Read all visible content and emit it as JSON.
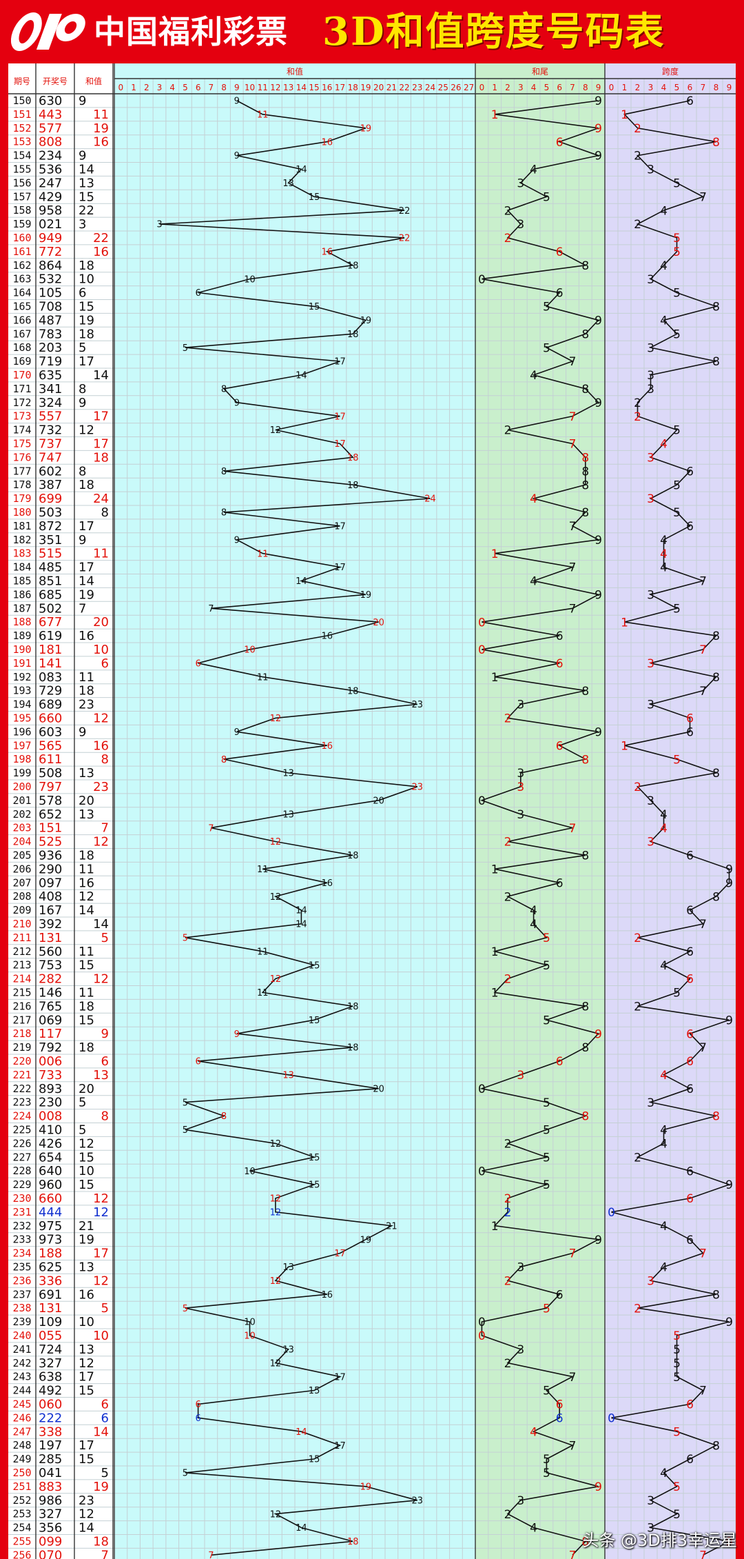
{
  "header": {
    "logo_text": "中国福利彩票",
    "title": "3D和值跨度号码表"
  },
  "columns": {
    "period": "期号",
    "draw": "开奖号",
    "sum": "和值",
    "sum_chart": "和值",
    "tail_chart": "和尾",
    "span_chart": "跨度"
  },
  "watermark": "头条 @3D排3幸运星",
  "colors": {
    "sheet_bg": "#ffffff",
    "sum_bg": "#c9fafa",
    "tail_bg": "#c9efcc",
    "span_bg": "#dcd9f8",
    "grid": "#c4d0d4",
    "red": "#e3120b",
    "blue": "#1030d0",
    "black": "#111111",
    "brand": "#e4000f"
  },
  "chart_data": {
    "type": "table",
    "title": "3D和值跨度号码表",
    "sum_axis": [
      "0",
      "1",
      "2",
      "3",
      "4",
      "5",
      "6",
      "7",
      "8",
      "9",
      "10",
      "11",
      "12",
      "13",
      "14",
      "15",
      "16",
      "17",
      "18",
      "19",
      "20",
      "21",
      "22",
      "23",
      "24",
      "25",
      "26",
      "27"
    ],
    "tail_axis": [
      "0",
      "1",
      "2",
      "3",
      "4",
      "5",
      "6",
      "7",
      "8",
      "9"
    ],
    "span_axis": [
      "0",
      "1",
      "2",
      "3",
      "4",
      "5",
      "6",
      "7",
      "8",
      "9"
    ],
    "rows": [
      {
        "period": "150",
        "draw": "630",
        "sum": "9",
        "tail": "9",
        "span": "6",
        "color": "black"
      },
      {
        "period": "151",
        "draw": "443",
        "sum": "11",
        "tail": "1",
        "span": "1",
        "color": "red"
      },
      {
        "period": "152",
        "draw": "577",
        "sum": "19",
        "tail": "9",
        "span": "2",
        "color": "red"
      },
      {
        "period": "153",
        "draw": "808",
        "sum": "16",
        "tail": "6",
        "span": "8",
        "color": "red"
      },
      {
        "period": "154",
        "draw": "234",
        "sum": "9",
        "tail": "9",
        "span": "2",
        "color": "black"
      },
      {
        "period": "155",
        "draw": "536",
        "sum": "14",
        "tail": "4",
        "span": "3",
        "color": "black"
      },
      {
        "period": "156",
        "draw": "247",
        "sum": "13",
        "tail": "3",
        "span": "5",
        "color": "black"
      },
      {
        "period": "157",
        "draw": "429",
        "sum": "15",
        "tail": "5",
        "span": "7",
        "color": "black"
      },
      {
        "period": "158",
        "draw": "958",
        "sum": "22",
        "tail": "2",
        "span": "4",
        "color": "black"
      },
      {
        "period": "159",
        "draw": "021",
        "sum": "3",
        "tail": "3",
        "span": "2",
        "color": "black"
      },
      {
        "period": "160",
        "draw": "949",
        "sum": "22",
        "tail": "2",
        "span": "5",
        "color": "red"
      },
      {
        "period": "161",
        "draw": "772",
        "sum": "16",
        "tail": "6",
        "span": "5",
        "color": "red"
      },
      {
        "period": "162",
        "draw": "864",
        "sum": "18",
        "tail": "8",
        "span": "4",
        "color": "black"
      },
      {
        "period": "163",
        "draw": "532",
        "sum": "10",
        "tail": "0",
        "span": "3",
        "color": "black"
      },
      {
        "period": "164",
        "draw": "105",
        "sum": "6",
        "tail": "6",
        "span": "5",
        "color": "black"
      },
      {
        "period": "165",
        "draw": "708",
        "sum": "15",
        "tail": "5",
        "span": "8",
        "color": "black"
      },
      {
        "period": "166",
        "draw": "487",
        "sum": "19",
        "tail": "9",
        "span": "4",
        "color": "black"
      },
      {
        "period": "167",
        "draw": "783",
        "sum": "18",
        "tail": "8",
        "span": "5",
        "color": "black"
      },
      {
        "period": "168",
        "draw": "203",
        "sum": "5",
        "tail": "5",
        "span": "3",
        "color": "black"
      },
      {
        "period": "169",
        "draw": "719",
        "sum": "17",
        "tail": "7",
        "span": "8",
        "color": "black"
      },
      {
        "period": "170",
        "draw": "635",
        "sum": "14",
        "tail": "4",
        "span": "3",
        "color": "red_period"
      },
      {
        "period": "171",
        "draw": "341",
        "sum": "8",
        "tail": "8",
        "span": "3",
        "color": "black"
      },
      {
        "period": "172",
        "draw": "324",
        "sum": "9",
        "tail": "9",
        "span": "2",
        "color": "black"
      },
      {
        "period": "173",
        "draw": "557",
        "sum": "17",
        "tail": "7",
        "span": "2",
        "color": "red"
      },
      {
        "period": "174",
        "draw": "732",
        "sum": "12",
        "tail": "2",
        "span": "5",
        "color": "black"
      },
      {
        "period": "175",
        "draw": "737",
        "sum": "17",
        "tail": "7",
        "span": "4",
        "color": "red"
      },
      {
        "period": "176",
        "draw": "747",
        "sum": "18",
        "tail": "8",
        "span": "3",
        "color": "red"
      },
      {
        "period": "177",
        "draw": "602",
        "sum": "8",
        "tail": "8",
        "span": "6",
        "color": "black"
      },
      {
        "period": "178",
        "draw": "387",
        "sum": "18",
        "tail": "8",
        "span": "5",
        "color": "black"
      },
      {
        "period": "179",
        "draw": "699",
        "sum": "24",
        "tail": "4",
        "span": "3",
        "color": "red"
      },
      {
        "period": "180",
        "draw": "503",
        "sum": "8",
        "tail": "8",
        "span": "5",
        "color": "red_period"
      },
      {
        "period": "181",
        "draw": "872",
        "sum": "17",
        "tail": "7",
        "span": "6",
        "color": "black"
      },
      {
        "period": "182",
        "draw": "351",
        "sum": "9",
        "tail": "9",
        "span": "4",
        "color": "black"
      },
      {
        "period": "183",
        "draw": "515",
        "sum": "11",
        "tail": "1",
        "span": "4",
        "color": "red"
      },
      {
        "period": "184",
        "draw": "485",
        "sum": "17",
        "tail": "7",
        "span": "4",
        "color": "black"
      },
      {
        "period": "185",
        "draw": "851",
        "sum": "14",
        "tail": "4",
        "span": "7",
        "color": "black"
      },
      {
        "period": "186",
        "draw": "685",
        "sum": "19",
        "tail": "9",
        "span": "3",
        "color": "black"
      },
      {
        "period": "187",
        "draw": "502",
        "sum": "7",
        "tail": "7",
        "span": "5",
        "color": "black"
      },
      {
        "period": "188",
        "draw": "677",
        "sum": "20",
        "tail": "0",
        "span": "1",
        "color": "red"
      },
      {
        "period": "189",
        "draw": "619",
        "sum": "16",
        "tail": "6",
        "span": "8",
        "color": "black"
      },
      {
        "period": "190",
        "draw": "181",
        "sum": "10",
        "tail": "0",
        "span": "7",
        "color": "red"
      },
      {
        "period": "191",
        "draw": "141",
        "sum": "6",
        "tail": "6",
        "span": "3",
        "color": "red"
      },
      {
        "period": "192",
        "draw": "083",
        "sum": "11",
        "tail": "1",
        "span": "8",
        "color": "black"
      },
      {
        "period": "193",
        "draw": "729",
        "sum": "18",
        "tail": "8",
        "span": "7",
        "color": "black"
      },
      {
        "period": "194",
        "draw": "689",
        "sum": "23",
        "tail": "3",
        "span": "3",
        "color": "black"
      },
      {
        "period": "195",
        "draw": "660",
        "sum": "12",
        "tail": "2",
        "span": "6",
        "color": "red"
      },
      {
        "period": "196",
        "draw": "603",
        "sum": "9",
        "tail": "9",
        "span": "6",
        "color": "black"
      },
      {
        "period": "197",
        "draw": "565",
        "sum": "16",
        "tail": "6",
        "span": "1",
        "color": "red"
      },
      {
        "period": "198",
        "draw": "611",
        "sum": "8",
        "tail": "8",
        "span": "5",
        "color": "red"
      },
      {
        "period": "199",
        "draw": "508",
        "sum": "13",
        "tail": "3",
        "span": "8",
        "color": "black"
      },
      {
        "period": "200",
        "draw": "797",
        "sum": "23",
        "tail": "3",
        "span": "2",
        "color": "red"
      },
      {
        "period": "201",
        "draw": "578",
        "sum": "20",
        "tail": "0",
        "span": "3",
        "color": "black"
      },
      {
        "period": "202",
        "draw": "652",
        "sum": "13",
        "tail": "3",
        "span": "4",
        "color": "black"
      },
      {
        "period": "203",
        "draw": "151",
        "sum": "7",
        "tail": "7",
        "span": "4",
        "color": "red"
      },
      {
        "period": "204",
        "draw": "525",
        "sum": "12",
        "tail": "2",
        "span": "3",
        "color": "red"
      },
      {
        "period": "205",
        "draw": "936",
        "sum": "18",
        "tail": "8",
        "span": "6",
        "color": "black"
      },
      {
        "period": "206",
        "draw": "290",
        "sum": "11",
        "tail": "1",
        "span": "9",
        "color": "black"
      },
      {
        "period": "207",
        "draw": "097",
        "sum": "16",
        "tail": "6",
        "span": "9",
        "color": "black"
      },
      {
        "period": "208",
        "draw": "408",
        "sum": "12",
        "tail": "2",
        "span": "8",
        "color": "black"
      },
      {
        "period": "209",
        "draw": "167",
        "sum": "14",
        "tail": "4",
        "span": "6",
        "color": "black"
      },
      {
        "period": "210",
        "draw": "392",
        "sum": "14",
        "tail": "4",
        "span": "7",
        "color": "red_period"
      },
      {
        "period": "211",
        "draw": "131",
        "sum": "5",
        "tail": "5",
        "span": "2",
        "color": "red"
      },
      {
        "period": "212",
        "draw": "560",
        "sum": "11",
        "tail": "1",
        "span": "6",
        "color": "black"
      },
      {
        "period": "213",
        "draw": "753",
        "sum": "15",
        "tail": "5",
        "span": "4",
        "color": "black"
      },
      {
        "period": "214",
        "draw": "282",
        "sum": "12",
        "tail": "2",
        "span": "6",
        "color": "red"
      },
      {
        "period": "215",
        "draw": "146",
        "sum": "11",
        "tail": "1",
        "span": "5",
        "color": "black"
      },
      {
        "period": "216",
        "draw": "765",
        "sum": "18",
        "tail": "8",
        "span": "2",
        "color": "black"
      },
      {
        "period": "217",
        "draw": "069",
        "sum": "15",
        "tail": "5",
        "span": "9",
        "color": "black"
      },
      {
        "period": "218",
        "draw": "117",
        "sum": "9",
        "tail": "9",
        "span": "6",
        "color": "red"
      },
      {
        "period": "219",
        "draw": "792",
        "sum": "18",
        "tail": "8",
        "span": "7",
        "color": "black"
      },
      {
        "period": "220",
        "draw": "006",
        "sum": "6",
        "tail": "6",
        "span": "6",
        "color": "red"
      },
      {
        "period": "221",
        "draw": "733",
        "sum": "13",
        "tail": "3",
        "span": "4",
        "color": "red"
      },
      {
        "period": "222",
        "draw": "893",
        "sum": "20",
        "tail": "0",
        "span": "6",
        "color": "black"
      },
      {
        "period": "223",
        "draw": "230",
        "sum": "5",
        "tail": "5",
        "span": "3",
        "color": "black"
      },
      {
        "period": "224",
        "draw": "008",
        "sum": "8",
        "tail": "8",
        "span": "8",
        "color": "red"
      },
      {
        "period": "225",
        "draw": "410",
        "sum": "5",
        "tail": "5",
        "span": "4",
        "color": "black"
      },
      {
        "period": "226",
        "draw": "426",
        "sum": "12",
        "tail": "2",
        "span": "4",
        "color": "black"
      },
      {
        "period": "227",
        "draw": "654",
        "sum": "15",
        "tail": "5",
        "span": "2",
        "color": "black"
      },
      {
        "period": "228",
        "draw": "640",
        "sum": "10",
        "tail": "0",
        "span": "6",
        "color": "black"
      },
      {
        "period": "229",
        "draw": "960",
        "sum": "15",
        "tail": "5",
        "span": "9",
        "color": "black"
      },
      {
        "period": "230",
        "draw": "660",
        "sum": "12",
        "tail": "2",
        "span": "6",
        "color": "red"
      },
      {
        "period": "231",
        "draw": "444",
        "sum": "12",
        "tail": "2",
        "span": "0",
        "color": "blue"
      },
      {
        "period": "232",
        "draw": "975",
        "sum": "21",
        "tail": "1",
        "span": "4",
        "color": "black"
      },
      {
        "period": "233",
        "draw": "973",
        "sum": "19",
        "tail": "9",
        "span": "6",
        "color": "black"
      },
      {
        "period": "234",
        "draw": "188",
        "sum": "17",
        "tail": "7",
        "span": "7",
        "color": "red"
      },
      {
        "period": "235",
        "draw": "625",
        "sum": "13",
        "tail": "3",
        "span": "4",
        "color": "black"
      },
      {
        "period": "236",
        "draw": "336",
        "sum": "12",
        "tail": "2",
        "span": "3",
        "color": "red"
      },
      {
        "period": "237",
        "draw": "691",
        "sum": "16",
        "tail": "6",
        "span": "8",
        "color": "black"
      },
      {
        "period": "238",
        "draw": "131",
        "sum": "5",
        "tail": "5",
        "span": "2",
        "color": "red"
      },
      {
        "period": "239",
        "draw": "109",
        "sum": "10",
        "tail": "0",
        "span": "9",
        "color": "black"
      },
      {
        "period": "240",
        "draw": "055",
        "sum": "10",
        "tail": "0",
        "span": "5",
        "color": "red"
      },
      {
        "period": "241",
        "draw": "724",
        "sum": "13",
        "tail": "3",
        "span": "5",
        "color": "black"
      },
      {
        "period": "242",
        "draw": "327",
        "sum": "12",
        "tail": "2",
        "span": "5",
        "color": "black"
      },
      {
        "period": "243",
        "draw": "638",
        "sum": "17",
        "tail": "7",
        "span": "5",
        "color": "black"
      },
      {
        "period": "244",
        "draw": "492",
        "sum": "15",
        "tail": "5",
        "span": "7",
        "color": "black"
      },
      {
        "period": "245",
        "draw": "060",
        "sum": "6",
        "tail": "6",
        "span": "6",
        "color": "red"
      },
      {
        "period": "246",
        "draw": "222",
        "sum": "6",
        "tail": "6",
        "span": "0",
        "color": "blue"
      },
      {
        "period": "247",
        "draw": "338",
        "sum": "14",
        "tail": "4",
        "span": "5",
        "color": "red"
      },
      {
        "period": "248",
        "draw": "197",
        "sum": "17",
        "tail": "7",
        "span": "8",
        "color": "black"
      },
      {
        "period": "249",
        "draw": "285",
        "sum": "15",
        "tail": "5",
        "span": "6",
        "color": "black"
      },
      {
        "period": "250",
        "draw": "041",
        "sum": "5",
        "tail": "5",
        "span": "4",
        "color": "red_period"
      },
      {
        "period": "251",
        "draw": "883",
        "sum": "19",
        "tail": "9",
        "span": "5",
        "color": "red"
      },
      {
        "period": "252",
        "draw": "986",
        "sum": "23",
        "tail": "3",
        "span": "3",
        "color": "black"
      },
      {
        "period": "253",
        "draw": "327",
        "sum": "12",
        "tail": "2",
        "span": "5",
        "color": "black"
      },
      {
        "period": "254",
        "draw": "356",
        "sum": "14",
        "tail": "4",
        "span": "3",
        "color": "black"
      },
      {
        "period": "255",
        "draw": "099",
        "sum": "18",
        "tail": "8",
        "span": "9",
        "color": "red"
      },
      {
        "period": "256",
        "draw": "070",
        "sum": "7",
        "tail": "7",
        "span": "7",
        "color": "red"
      }
    ]
  }
}
